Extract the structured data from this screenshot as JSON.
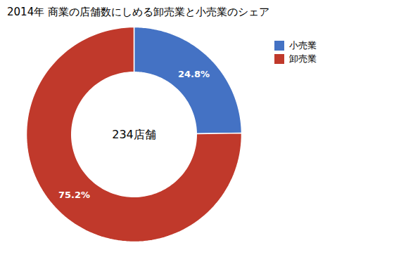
{
  "chart_data": {
    "type": "pie",
    "title": "2014年 商業の店舗数にしめる卸売業と小売業のシェア",
    "categories": [
      "小売業",
      "卸売業"
    ],
    "values": [
      24.8,
      75.2
    ],
    "colors": [
      "#4472C4",
      "#C0392B"
    ],
    "data_labels": true,
    "value_labels": [
      "24.8%",
      "75.2%"
    ],
    "annotations": [
      "234店舗"
    ],
    "legend": "upper right"
  }
}
